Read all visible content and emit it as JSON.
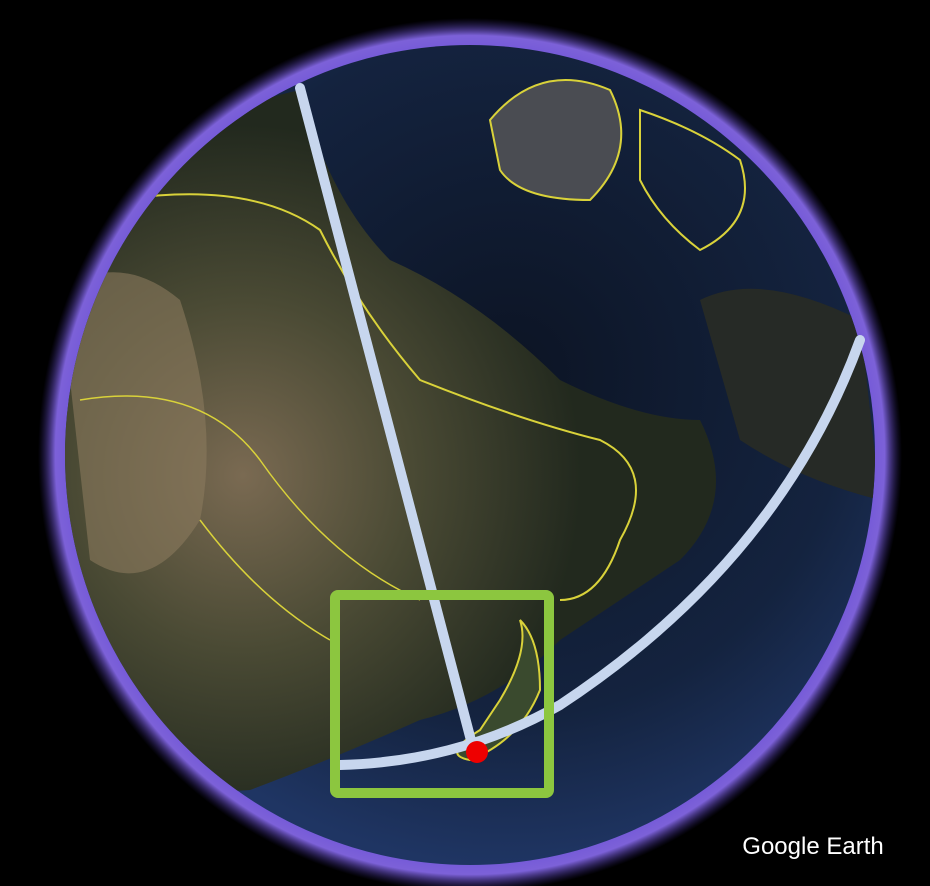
{
  "attribution": "Google Earth"
}
